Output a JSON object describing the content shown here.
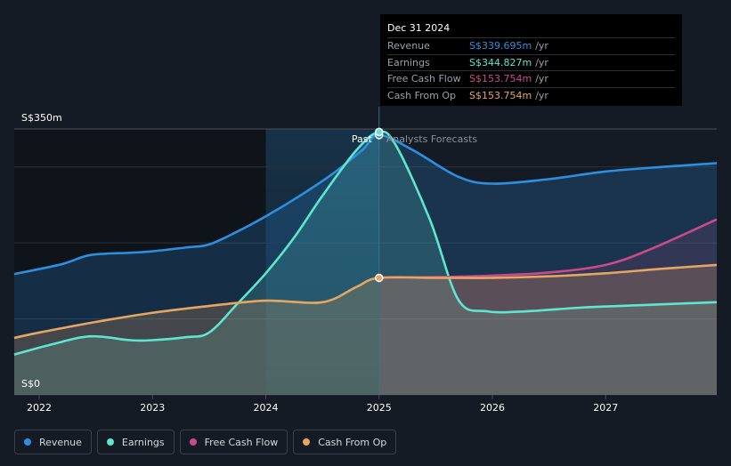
{
  "colors": {
    "background": "#151b24",
    "revenue": "#2c8fe0",
    "earnings": "#5ee6d0",
    "free_cash_flow": "#c94b8c",
    "cash_from_op": "#e7a660",
    "grid": "#2c323b"
  },
  "tooltip": {
    "date": "Dec 31 2024",
    "rows": [
      {
        "label": "Revenue",
        "value": "S$339.695m",
        "unit": "/yr",
        "color": "#2c8fe0"
      },
      {
        "label": "Earnings",
        "value": "S$344.827m",
        "unit": "/yr",
        "color": "#5ee6d0"
      },
      {
        "label": "Free Cash Flow",
        "value": "S$153.754m",
        "unit": "/yr",
        "color": "#c94b8c"
      },
      {
        "label": "Cash From Op",
        "value": "S$153.754m",
        "unit": "/yr",
        "color": "#e7a660"
      }
    ]
  },
  "chart_data": {
    "type": "area",
    "y_top_label": "S$350m",
    "y_bottom_label": "S$0",
    "ylim": [
      0,
      350
    ],
    "x_ticks": [
      "2022",
      "2023",
      "2024",
      "2025",
      "2026",
      "2027"
    ],
    "xlim": [
      2021.78,
      2027.98
    ],
    "past_label": "Past",
    "forecast_label": "Analysts Forecasts",
    "divider_x": 2025.0,
    "highlight_start_x": 2024.0,
    "series": [
      {
        "name": "Revenue",
        "color": "#2c8fe0",
        "points": [
          [
            2021.78,
            159
          ],
          [
            2022.2,
            172
          ],
          [
            2022.45,
            184
          ],
          [
            2022.8,
            187
          ],
          [
            2023.0,
            189
          ],
          [
            2023.3,
            194
          ],
          [
            2023.5,
            198
          ],
          [
            2023.75,
            215
          ],
          [
            2024.0,
            235
          ],
          [
            2024.3,
            262
          ],
          [
            2024.6,
            292
          ],
          [
            2024.85,
            322
          ],
          [
            2025.0,
            342
          ],
          [
            2025.3,
            322
          ],
          [
            2025.7,
            287
          ],
          [
            2026.0,
            278
          ],
          [
            2026.5,
            284
          ],
          [
            2027.0,
            294
          ],
          [
            2027.5,
            300
          ],
          [
            2027.98,
            305
          ]
        ]
      },
      {
        "name": "Earnings",
        "color": "#5ee6d0",
        "points": [
          [
            2021.78,
            53
          ],
          [
            2022.1,
            66
          ],
          [
            2022.45,
            77
          ],
          [
            2022.8,
            72
          ],
          [
            2023.0,
            72
          ],
          [
            2023.3,
            76
          ],
          [
            2023.5,
            82
          ],
          [
            2023.75,
            120
          ],
          [
            2024.0,
            160
          ],
          [
            2024.25,
            207
          ],
          [
            2024.5,
            262
          ],
          [
            2024.8,
            322
          ],
          [
            2025.0,
            346
          ],
          [
            2025.15,
            328
          ],
          [
            2025.45,
            230
          ],
          [
            2025.7,
            125
          ],
          [
            2025.95,
            110
          ],
          [
            2026.3,
            110
          ],
          [
            2026.8,
            115
          ],
          [
            2027.3,
            118
          ],
          [
            2027.98,
            122
          ]
        ]
      },
      {
        "name": "Free Cash Flow",
        "color": "#c94b8c",
        "points": [
          [
            2025.0,
            154
          ],
          [
            2025.5,
            155
          ],
          [
            2026.0,
            157
          ],
          [
            2026.5,
            161
          ],
          [
            2027.0,
            171
          ],
          [
            2027.4,
            192
          ],
          [
            2027.98,
            231
          ]
        ]
      },
      {
        "name": "Cash From Op",
        "color": "#e7a660",
        "points": [
          [
            2021.78,
            75
          ],
          [
            2022.0,
            82
          ],
          [
            2022.5,
            96
          ],
          [
            2023.0,
            108
          ],
          [
            2023.5,
            117
          ],
          [
            2024.0,
            124
          ],
          [
            2024.5,
            122
          ],
          [
            2024.8,
            142
          ],
          [
            2025.0,
            154
          ],
          [
            2025.5,
            154
          ],
          [
            2026.0,
            154
          ],
          [
            2026.5,
            156
          ],
          [
            2027.0,
            160
          ],
          [
            2027.5,
            166
          ],
          [
            2027.98,
            171
          ]
        ]
      }
    ]
  },
  "legend": [
    {
      "label": "Revenue",
      "color": "#2c8fe0"
    },
    {
      "label": "Earnings",
      "color": "#5ee6d0"
    },
    {
      "label": "Free Cash Flow",
      "color": "#c94b8c"
    },
    {
      "label": "Cash From Op",
      "color": "#e7a660"
    }
  ]
}
